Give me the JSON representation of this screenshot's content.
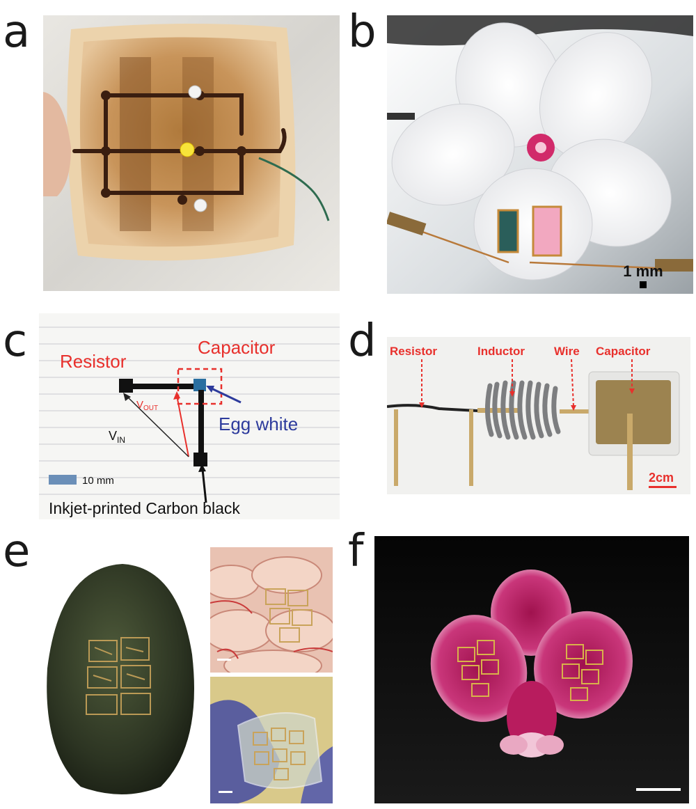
{
  "panels": {
    "a": {
      "letter": "a"
    },
    "b": {
      "letter": "b",
      "scale": "1 mm"
    },
    "c": {
      "letter": "c",
      "resistor": "Resistor",
      "capacitor": "Capacitor",
      "egg_white": "Egg white",
      "vout_main": "V",
      "vout_sub": "OUT",
      "vin_main": "V",
      "vin_sub": "IN",
      "scale": "10 mm",
      "caption": "Inkjet-printed Carbon black"
    },
    "d": {
      "letter": "d",
      "resistor": "Resistor",
      "inductor": "Inductor",
      "wire": "Wire",
      "capacitor": "Capacitor",
      "scale": "2cm"
    },
    "e": {
      "letter": "e"
    },
    "f": {
      "letter": "f"
    }
  },
  "colors": {
    "label_red": "#e8302c",
    "label_blue": "#2d3b9c",
    "scale_blue": "#6b8fb8"
  }
}
